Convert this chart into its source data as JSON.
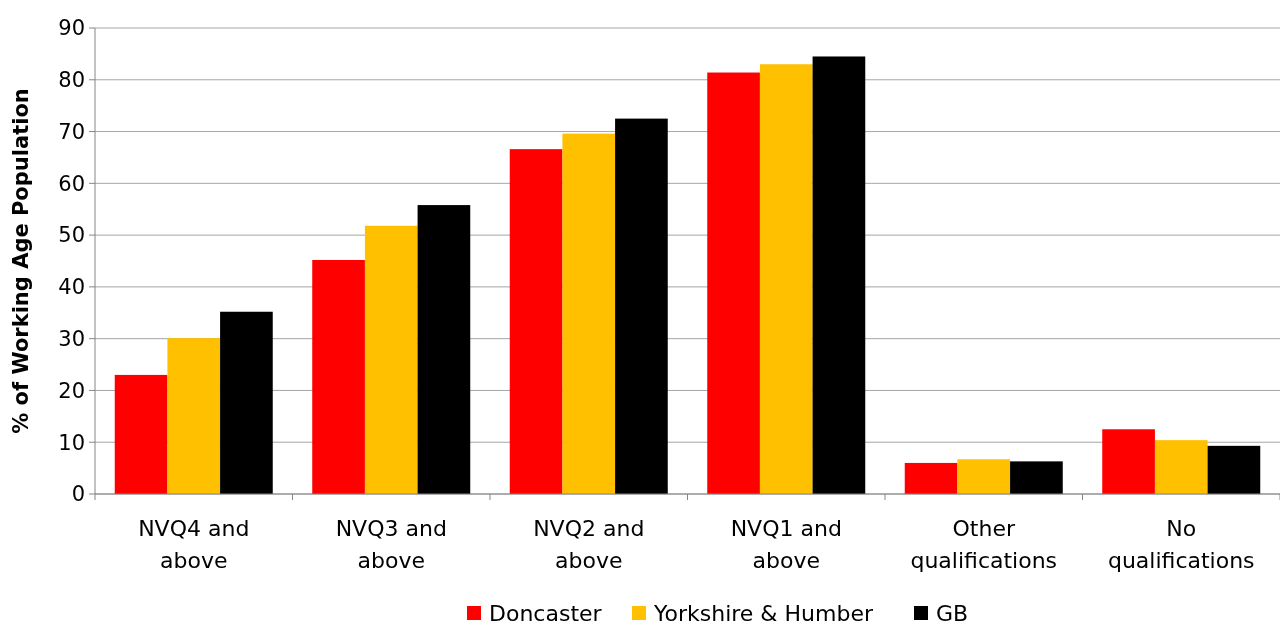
{
  "chart_data": {
    "type": "bar",
    "ylabel": "% of Working Age Population",
    "categories": [
      "NVQ4 and above",
      "NVQ3 and above",
      "NVQ2 and above",
      "NVQ1 and above",
      "Other qualifications",
      "No qualifications"
    ],
    "series": [
      {
        "name": "Doncaster",
        "color": "#ff0000",
        "values": [
          23.0,
          45.2,
          66.6,
          81.4,
          6.0,
          12.5
        ]
      },
      {
        "name": "Yorkshire & Humber",
        "color": "#ffc000",
        "values": [
          30.1,
          51.8,
          69.6,
          83.0,
          6.7,
          10.4
        ]
      },
      {
        "name": "GB",
        "color": "#000000",
        "values": [
          35.2,
          55.8,
          72.5,
          84.5,
          6.3,
          9.3
        ]
      }
    ],
    "ylim": [
      0,
      90
    ],
    "yticks": [
      0,
      10,
      20,
      30,
      40,
      50,
      60,
      70,
      80,
      90
    ],
    "grid": "y",
    "legend": "bottom"
  }
}
